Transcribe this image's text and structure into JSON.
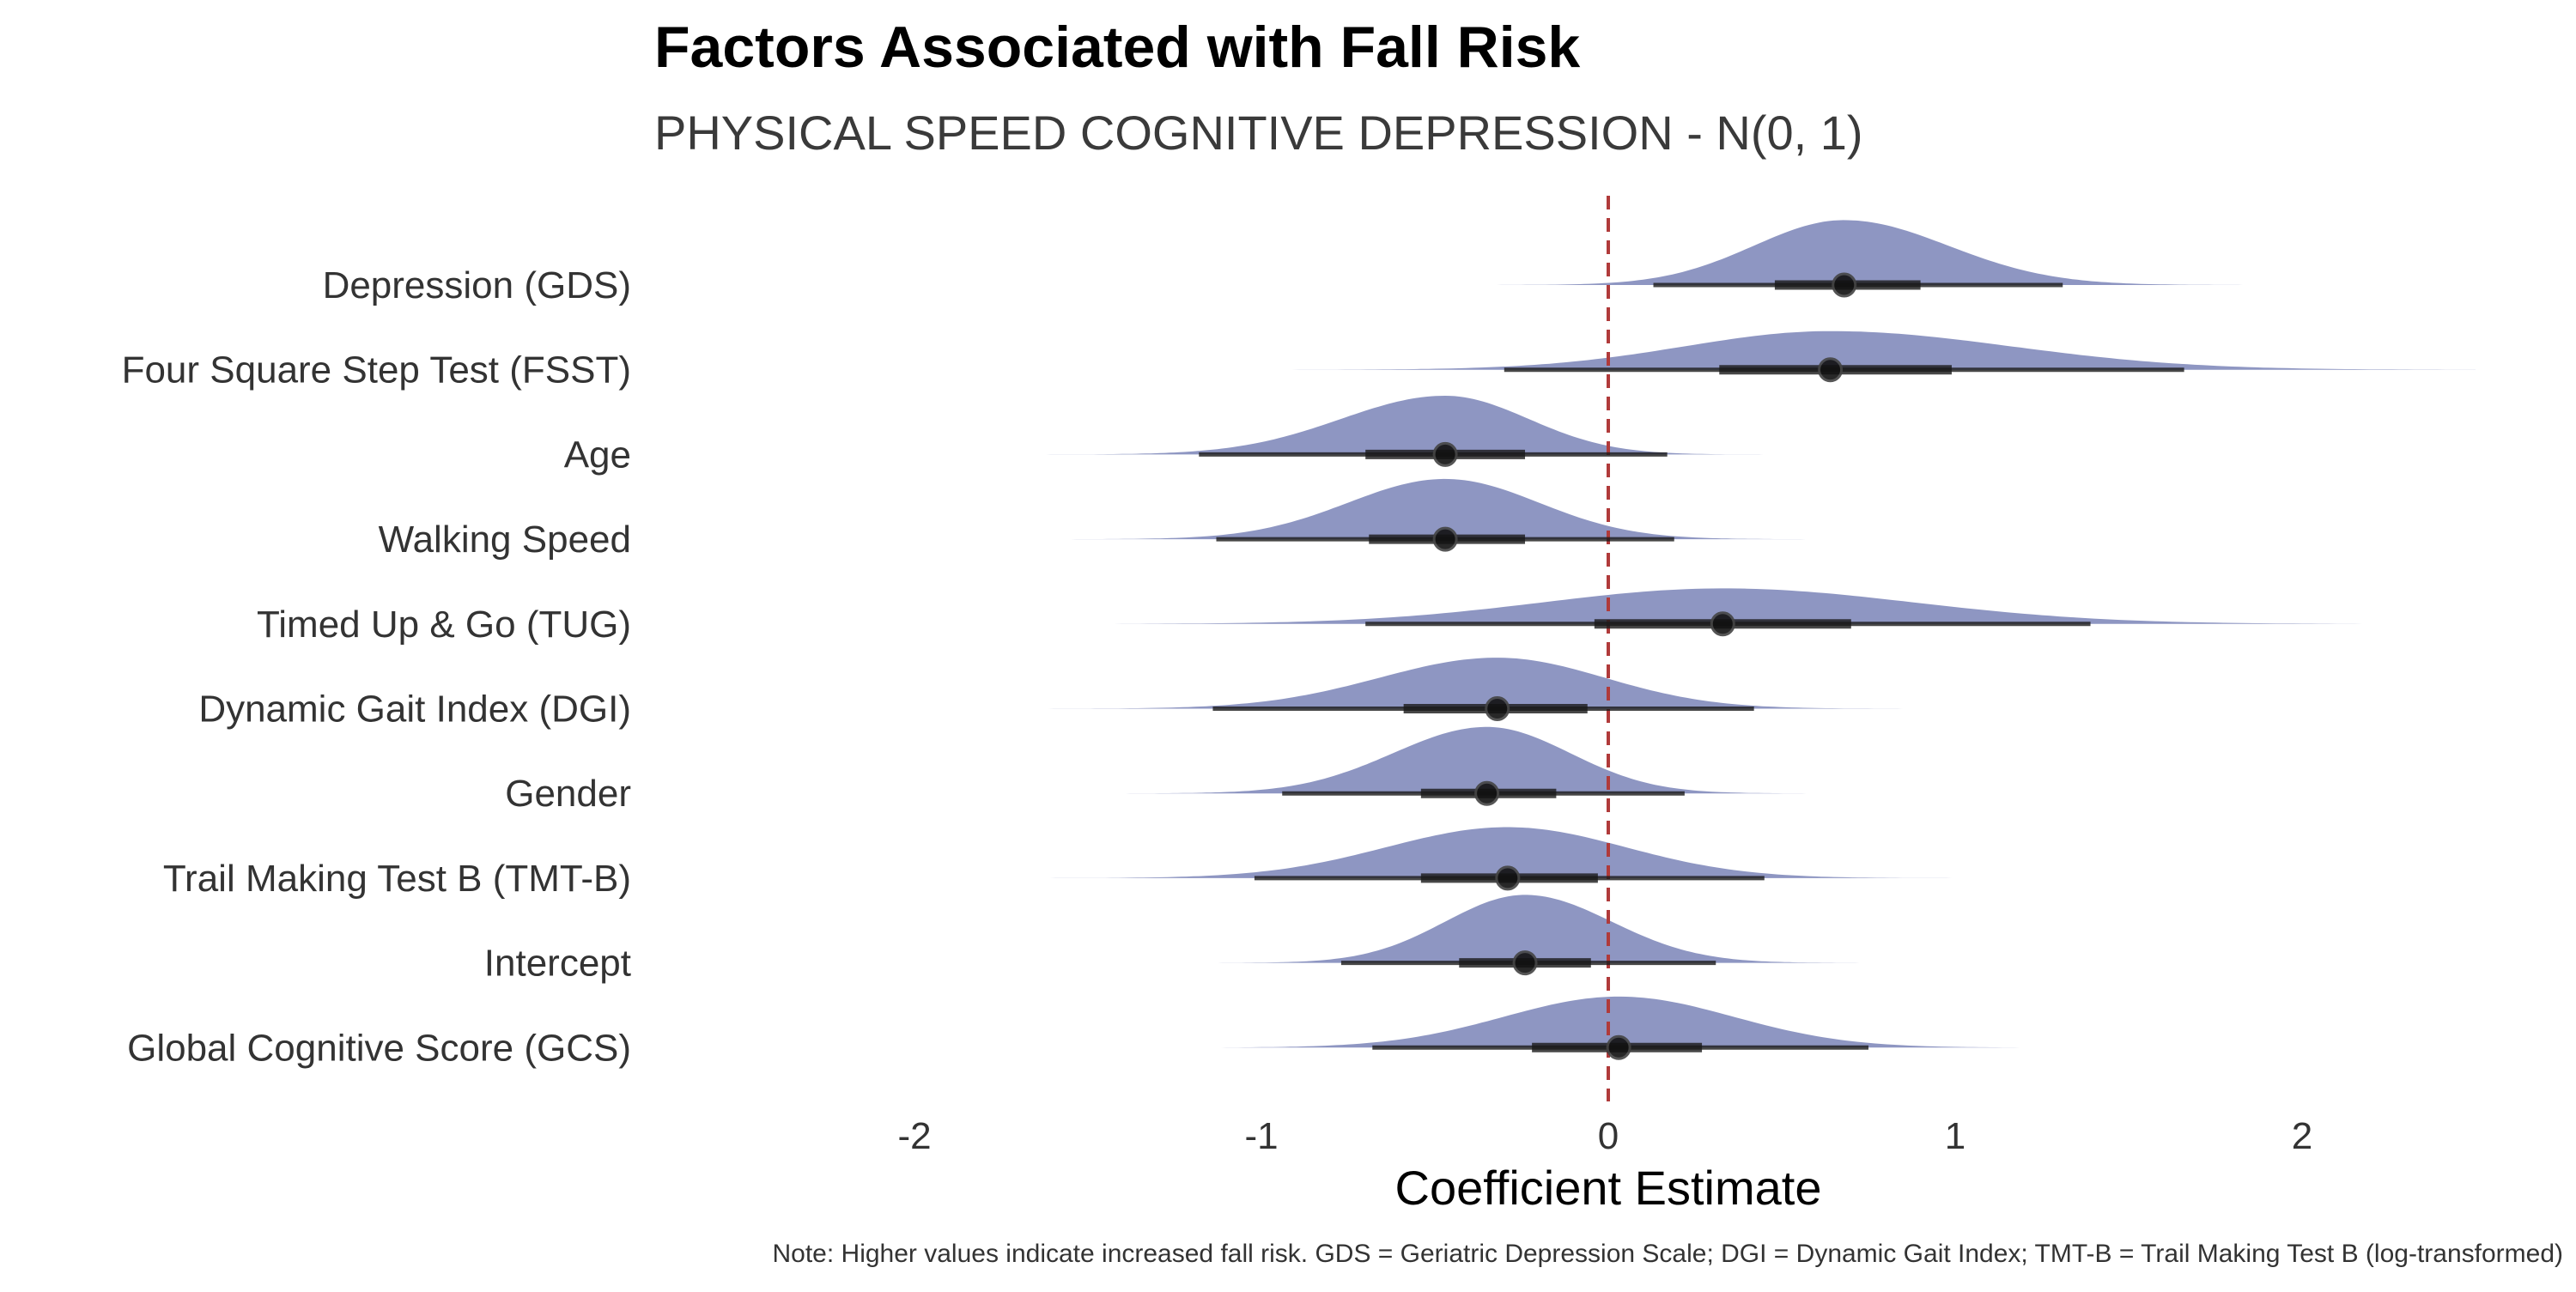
{
  "chart_data": {
    "type": "area",
    "title": "Factors Associated with Fall Risk",
    "subtitle": "PHYSICAL SPEED COGNITIVE DEPRESSION - N(0, 1)",
    "xlabel": "Coefficient Estimate",
    "ylabel": "",
    "caption": "Note: Higher values indicate increased fall risk. GDS = Geriatric Depression Scale; DGI = Dynamic Gait Index; TMT-B = Trail Making Test B (log-transformed)",
    "xlim": [
      -2.6,
      2.8
    ],
    "xticks": [
      -2,
      -1,
      0,
      1,
      2
    ],
    "xtick_labels": [
      "-2",
      "-1",
      "0",
      "1",
      "2"
    ],
    "reference_line": 0,
    "grid": false,
    "colors": {
      "density": "#8e96c2",
      "interval": "#1a1a1a",
      "reference": "#b03a3a"
    },
    "series": [
      {
        "name": "Depression (GDS)",
        "median": 0.68,
        "ci66": [
          0.48,
          0.9
        ],
        "ci95": [
          0.13,
          1.31
        ],
        "tails": [
          -0.42,
          1.83
        ],
        "sd_left": 0.26,
        "sd_right": 0.3,
        "height": 0.84
      },
      {
        "name": "Four Square Step Test (FSST)",
        "median": 0.64,
        "ci66": [
          0.32,
          0.99
        ],
        "ci95": [
          -0.3,
          1.66
        ],
        "tails": [
          -1.0,
          2.5
        ],
        "sd_left": 0.42,
        "sd_right": 0.52,
        "height": 0.5
      },
      {
        "name": "Age",
        "median": -0.47,
        "ci66": [
          -0.7,
          -0.24
        ],
        "ci95": [
          -1.18,
          0.17
        ],
        "tails": [
          -1.62,
          0.57
        ],
        "sd_left": 0.3,
        "sd_right": 0.24,
        "height": 0.76
      },
      {
        "name": "Walking Speed",
        "median": -0.47,
        "ci66": [
          -0.69,
          -0.24
        ],
        "ci95": [
          -1.13,
          0.19
        ],
        "tails": [
          -1.7,
          0.72
        ],
        "sd_left": 0.28,
        "sd_right": 0.27,
        "height": 0.78
      },
      {
        "name": "Timed Up & Go (TUG)",
        "median": 0.33,
        "ci66": [
          -0.04,
          0.7
        ],
        "ci95": [
          -0.7,
          1.39
        ],
        "tails": [
          -1.5,
          2.5
        ],
        "sd_left": 0.52,
        "sd_right": 0.55,
        "height": 0.46
      },
      {
        "name": "Dynamic Gait Index (DGI)",
        "median": -0.32,
        "ci66": [
          -0.59,
          -0.06
        ],
        "ci95": [
          -1.14,
          0.42
        ],
        "tails": [
          -1.8,
          0.9
        ],
        "sd_left": 0.34,
        "sd_right": 0.31,
        "height": 0.66
      },
      {
        "name": "Gender",
        "median": -0.35,
        "ci66": [
          -0.54,
          -0.15
        ],
        "ci95": [
          -0.94,
          0.22
        ],
        "tails": [
          -1.5,
          0.68
        ],
        "sd_left": 0.27,
        "sd_right": 0.24,
        "height": 0.86
      },
      {
        "name": "Trail Making Test B (TMT-B)",
        "median": -0.29,
        "ci66": [
          -0.54,
          -0.03
        ],
        "ci95": [
          -1.02,
          0.45
        ],
        "tails": [
          -1.7,
          1.17
        ],
        "sd_left": 0.35,
        "sd_right": 0.34,
        "height": 0.66
      },
      {
        "name": "Intercept",
        "median": -0.24,
        "ci66": [
          -0.43,
          -0.05
        ],
        "ci95": [
          -0.77,
          0.31
        ],
        "tails": [
          -1.26,
          0.9
        ],
        "sd_left": 0.23,
        "sd_right": 0.25,
        "height": 0.88
      },
      {
        "name": "Global Cognitive Score (GCS)",
        "median": 0.03,
        "ci66": [
          -0.22,
          0.27
        ],
        "ci95": [
          -0.68,
          0.75
        ],
        "tails": [
          -1.25,
          1.42
        ],
        "sd_left": 0.33,
        "sd_right": 0.33,
        "height": 0.66
      }
    ]
  }
}
